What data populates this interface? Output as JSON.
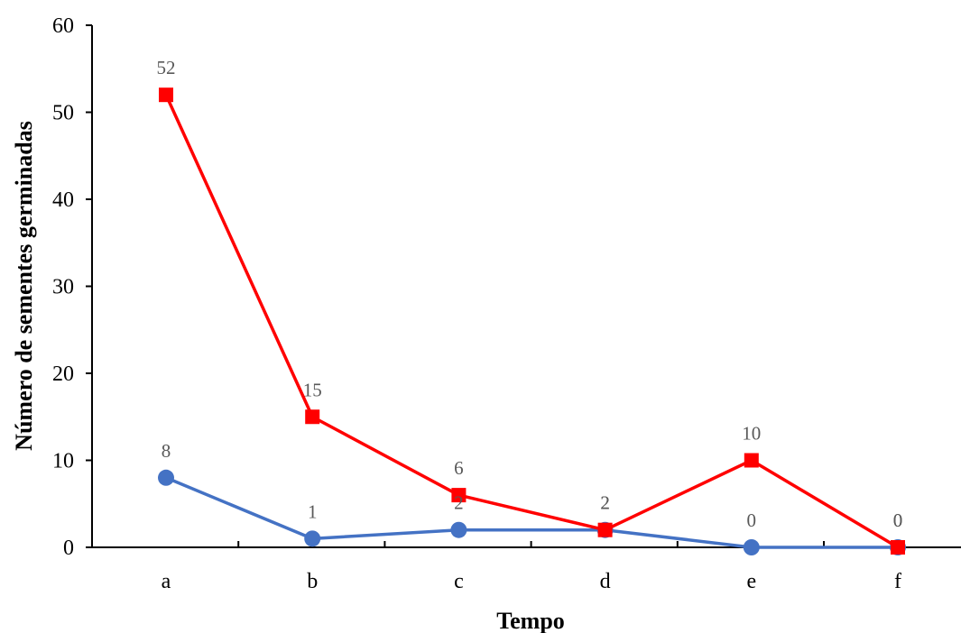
{
  "chart_data": {
    "type": "line",
    "title": "",
    "xlabel": "Tempo",
    "ylabel": "Número de sementes germinadas",
    "categories": [
      "a",
      "b",
      "c",
      "d",
      "e",
      "f"
    ],
    "ylim": [
      0,
      60
    ],
    "yticks": [
      0,
      10,
      20,
      30,
      40,
      50,
      60
    ],
    "grid": false,
    "legend": "none",
    "series": [
      {
        "values": [
          52,
          15,
          6,
          2,
          10,
          0
        ],
        "color": "#ff0000",
        "marker": "square"
      },
      {
        "values": [
          8,
          1,
          2,
          2,
          0,
          0
        ],
        "color": "#4472c4",
        "marker": "circle"
      }
    ]
  }
}
